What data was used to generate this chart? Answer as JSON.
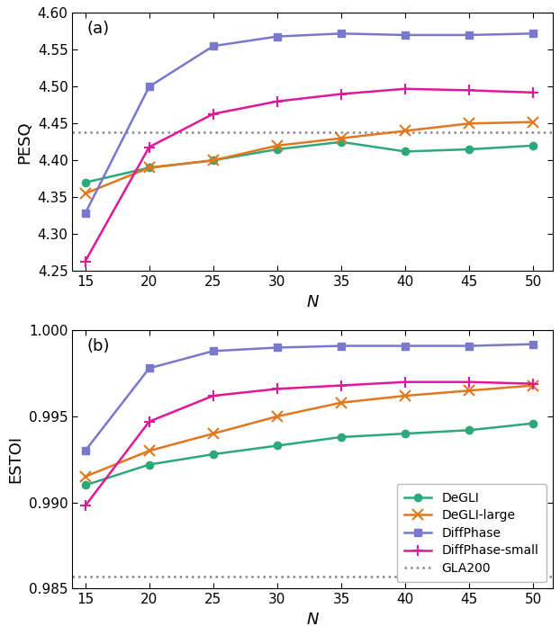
{
  "x": [
    15,
    20,
    25,
    30,
    35,
    40,
    45,
    50
  ],
  "pesq": {
    "DeGLI": [
      4.37,
      4.39,
      4.4,
      4.415,
      4.425,
      4.412,
      4.415,
      4.42
    ],
    "DeGLI-large": [
      4.355,
      4.39,
      4.4,
      4.42,
      4.43,
      4.44,
      4.45,
      4.452
    ],
    "DiffPhase": [
      4.328,
      4.5,
      4.555,
      4.568,
      4.572,
      4.57,
      4.57,
      4.572
    ],
    "DiffPhase-small": [
      4.263,
      4.418,
      4.463,
      4.48,
      4.49,
      4.497,
      4.495,
      4.492
    ],
    "GLA200": 4.438
  },
  "estoi": {
    "DeGLI": [
      0.991,
      0.9922,
      0.9928,
      0.9933,
      0.9938,
      0.994,
      0.9942,
      0.9946
    ],
    "DeGLI-large": [
      0.9915,
      0.993,
      0.994,
      0.995,
      0.9958,
      0.9962,
      0.9965,
      0.9968
    ],
    "DiffPhase": [
      0.993,
      0.9978,
      0.9988,
      0.999,
      0.9991,
      0.9991,
      0.9991,
      0.9992
    ],
    "DiffPhase-small": [
      0.9898,
      0.9947,
      0.9962,
      0.9966,
      0.9968,
      0.997,
      0.997,
      0.9969
    ],
    "GLA200": 0.9857
  },
  "colors": {
    "DeGLI": "#2ca87a",
    "DeGLI-large": "#e07820",
    "DiffPhase": "#7878cc",
    "DiffPhase-small": "#e0189a",
    "GLA200": "#888888"
  },
  "markers": {
    "DeGLI": "o",
    "DeGLI-large": "x",
    "DiffPhase": "s",
    "DiffPhase-small": "+"
  },
  "pesq_ylim": [
    4.25,
    4.6
  ],
  "pesq_yticks": [
    4.25,
    4.3,
    4.35,
    4.4,
    4.45,
    4.5,
    4.55,
    4.6
  ],
  "estoi_ylim": [
    0.985,
    1.0
  ],
  "estoi_yticks": [
    0.985,
    0.99,
    0.995,
    1.0
  ],
  "xticks": [
    15,
    20,
    25,
    30,
    35,
    40,
    45,
    50
  ],
  "xlim": [
    14.0,
    51.5
  ],
  "figsize": [
    6.22,
    7.06
  ],
  "dpi": 100,
  "linewidth": 1.8,
  "markersize": 6,
  "fontsize_label": 13,
  "fontsize_tick": 11,
  "fontsize_legend": 10
}
